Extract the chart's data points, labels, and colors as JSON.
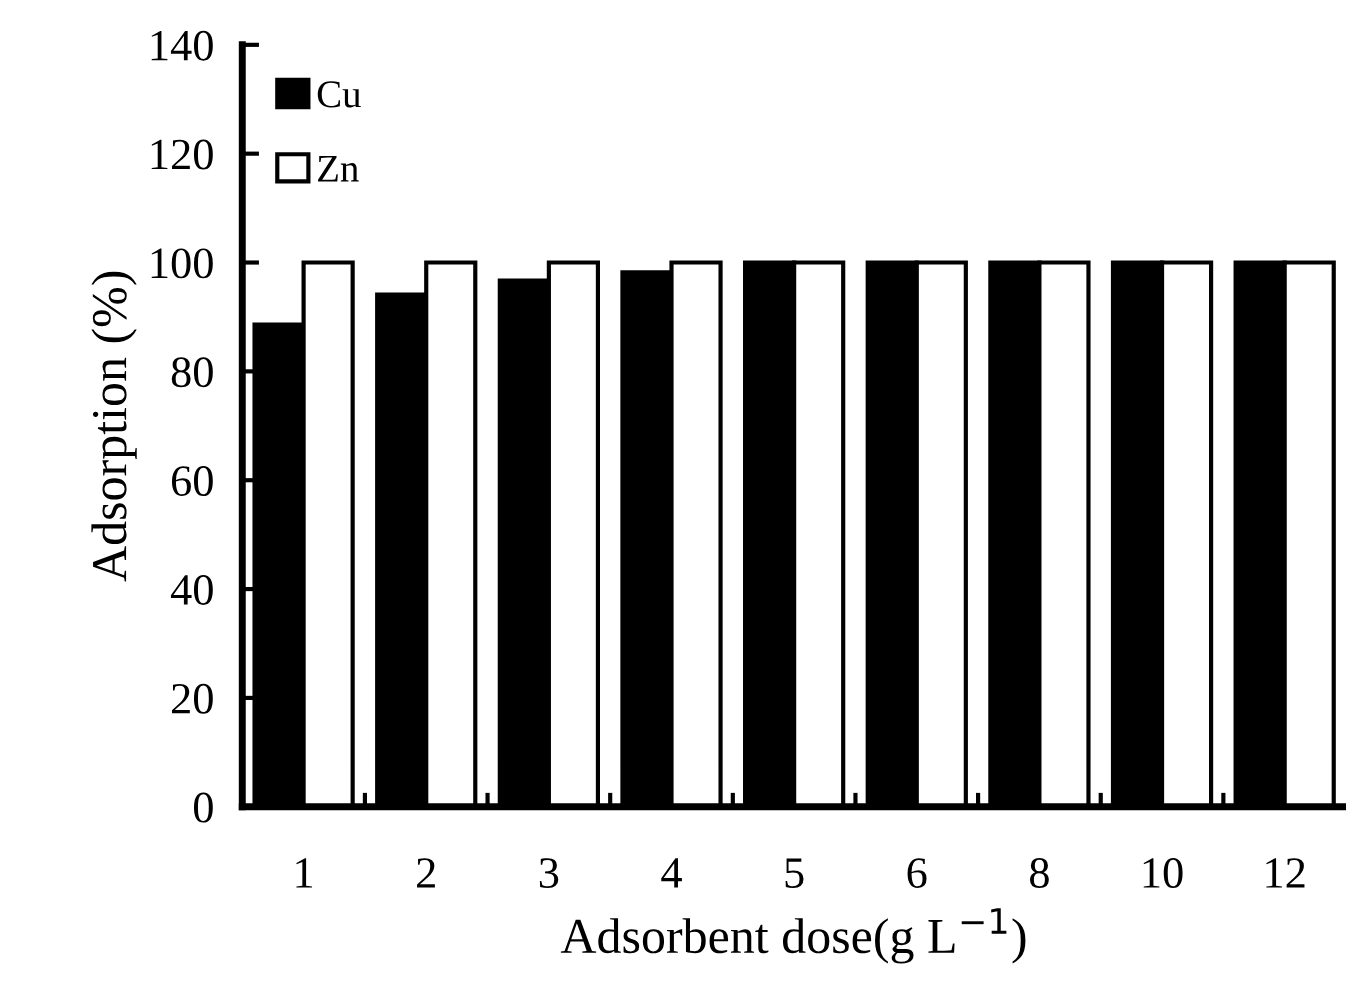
{
  "chart_data": {
    "type": "bar",
    "xlabel": "Adsorbent dose(g L$^{−1}$)",
    "ylabel": "Adsorption (%)",
    "categories": [
      "1",
      "2",
      "3",
      "4",
      "5",
      "6",
      "8",
      "10",
      "12"
    ],
    "series": [
      {
        "name": "Cu",
        "color": "#000000",
        "values": [
          88.6,
          94.1,
          96.7,
          98.2,
          100,
          100,
          100,
          100,
          100
        ]
      },
      {
        "name": "Zn",
        "color": "#ffffff",
        "values": [
          100,
          100,
          100,
          100,
          100,
          100,
          100,
          100,
          100
        ]
      }
    ],
    "ylim": [
      0,
      140
    ],
    "yticks": [
      0,
      20,
      40,
      60,
      80,
      100,
      120,
      140
    ],
    "grid": false,
    "legend": "top left"
  }
}
